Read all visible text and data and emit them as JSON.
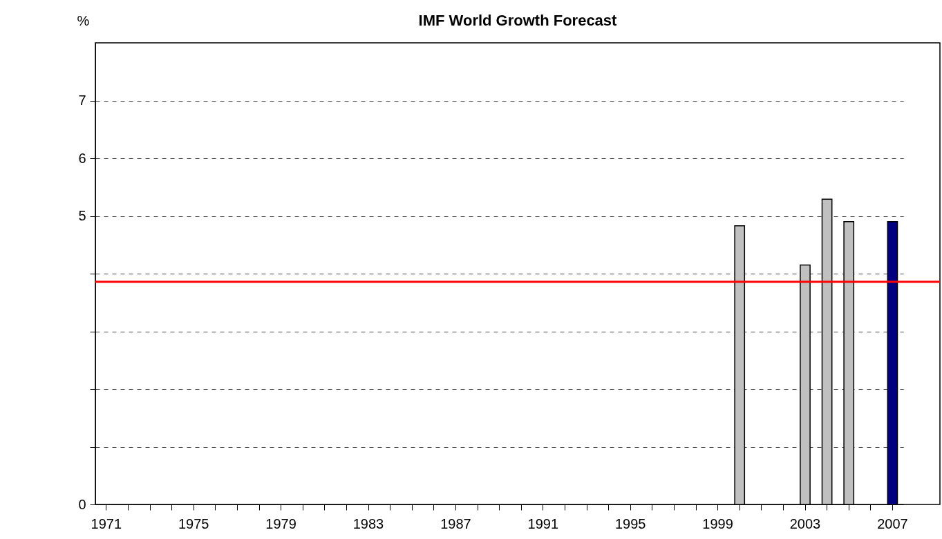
{
  "chart_data": {
    "type": "bar",
    "title": "IMF World Growth Forecast",
    "ylabel": "%",
    "categories": [
      "1971",
      null,
      null,
      null,
      "1975",
      null,
      null,
      null,
      "1979",
      null,
      null,
      null,
      "1983",
      null,
      null,
      null,
      "1987",
      null,
      null,
      null,
      "1991",
      null,
      null,
      null,
      "1995",
      null,
      null,
      null,
      "1999",
      null,
      null,
      null,
      "2003",
      null,
      null,
      null,
      "2007"
    ],
    "values": [
      null,
      null,
      null,
      null,
      null,
      null,
      null,
      null,
      null,
      null,
      null,
      null,
      null,
      null,
      null,
      null,
      null,
      null,
      null,
      null,
      null,
      null,
      null,
      null,
      null,
      null,
      null,
      null,
      null,
      4.83,
      null,
      null,
      4.15,
      5.29,
      4.9,
      null,
      4.9
    ],
    "colors": [
      "#c0c0c0",
      "#c0c0c0",
      "#c0c0c0",
      "#c0c0c0",
      "#c0c0c0",
      "#c0c0c0",
      "#c0c0c0",
      "#c0c0c0",
      "#c0c0c0",
      "#c0c0c0",
      "#c0c0c0",
      "#c0c0c0",
      "#c0c0c0",
      "#c0c0c0",
      "#c0c0c0",
      "#c0c0c0",
      "#c0c0c0",
      "#c0c0c0",
      "#c0c0c0",
      "#c0c0c0",
      "#c0c0c0",
      "#c0c0c0",
      "#c0c0c0",
      "#c0c0c0",
      "#c0c0c0",
      "#c0c0c0",
      "#c0c0c0",
      "#c0c0c0",
      "#c0c0c0",
      "#c0c0c0",
      "#c0c0c0",
      "#c0c0c0",
      "#c0c0c0",
      "#c0c0c0",
      "#c0c0c0",
      "#000080",
      "#000080"
    ],
    "ylim": [
      0,
      8
    ],
    "yticks": [
      0,
      {
        "value": 1,
        "label": null
      },
      {
        "value": 2,
        "label": null
      },
      {
        "value": 3,
        "label": null
      },
      {
        "value": 4,
        "label": null
      },
      5,
      6,
      7
    ],
    "ref_lines": [
      {
        "axis": "y",
        "value": 3.86,
        "color": "#ff0000"
      }
    ],
    "grid": "y"
  }
}
